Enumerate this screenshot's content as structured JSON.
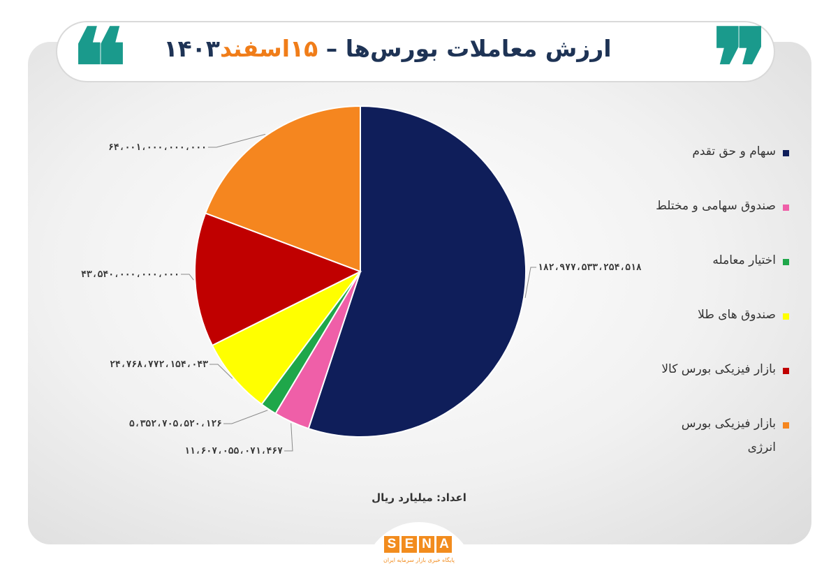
{
  "header": {
    "title_main": "ارزش معاملات بورس‌ها – ",
    "title_date_accent": "۱۵اسفند",
    "title_year": "۱۴۰۳",
    "open_quote": "❝",
    "close_quote": "❞"
  },
  "colors": {
    "title": "#1e3355",
    "accent": "#f07d19",
    "quote": "#1a9a8c"
  },
  "chart_data": {
    "type": "pie",
    "title": "ارزش معاملات بورس‌ها – ۱۵اسفند۱۴۰۳",
    "legend_position": "right",
    "slices": [
      {
        "label": "سهام و حق تقدم",
        "value": 182977533254518,
        "value_label": "۱۸۲،۹۷۷،۵۳۳،۲۵۴،۵۱۸",
        "color": "#0f1e5a"
      },
      {
        "label": "صندوق سهامی و مختلط",
        "value": 11607055071467,
        "value_label": "۱۱،۶۰۷،۰۵۵،۰۷۱،۴۶۷",
        "color": "#ef5fa8"
      },
      {
        "label": "اختیار معامله",
        "value": 5352705520126,
        "value_label": "۵،۳۵۲،۷۰۵،۵۲۰،۱۲۶",
        "color": "#1fa74a"
      },
      {
        "label": "صندوق های طلا",
        "value": 24768772154043,
        "value_label": "۲۴،۷۶۸،۷۷۲،۱۵۴،۰۴۳",
        "color": "#ffff00"
      },
      {
        "label": "بازار فیزیکی بورس کالا",
        "value": 43540000000000,
        "value_label": "۴۳،۵۴۰،۰۰۰،۰۰۰،۰۰۰",
        "color": "#c00000"
      },
      {
        "label": "بازار فیزیکی بورس انرژی",
        "value": 64001000000000,
        "value_label": "۶۴،۰۰۱،۰۰۰،۰۰۰،۰۰۰",
        "color": "#f5861f"
      }
    ]
  },
  "legend": [
    {
      "label": "سهام و حق تقدم",
      "color": "#0f1e5a"
    },
    {
      "label": "صندوق سهامی و مختلط",
      "color": "#ef5fa8"
    },
    {
      "label": "اختیار معامله",
      "color": "#1fa74a"
    },
    {
      "label": "صندوق های طلا",
      "color": "#ffff00"
    },
    {
      "label": "بازار فیزیکی بورس کالا",
      "color": "#c00000"
    },
    {
      "label": "بازار فیزیکی بورس انرژی",
      "color": "#f5861f"
    }
  ],
  "footer": {
    "note": "اعداد: میلیارد ریال",
    "logo_letters": [
      "S",
      "E",
      "N",
      "A"
    ],
    "logo_tagline": "پایگاه خبری بازار سرمایه ایران"
  }
}
